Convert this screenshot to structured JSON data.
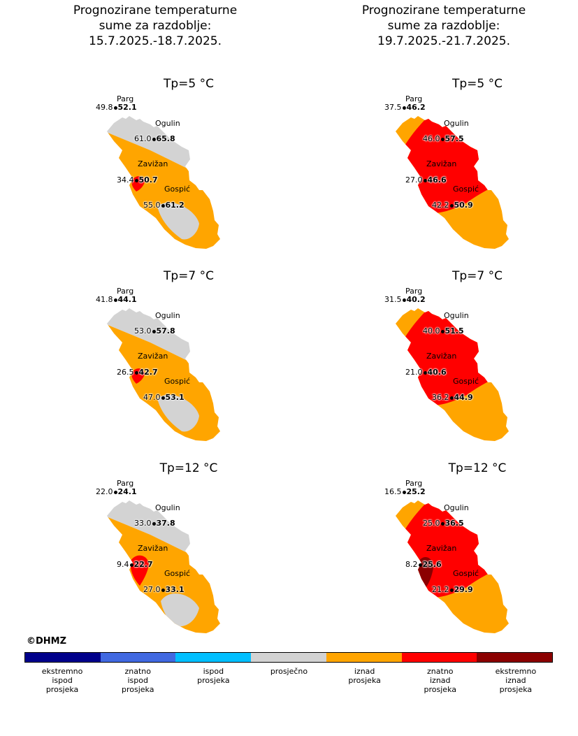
{
  "titles": {
    "left": [
      "Prognozirane temperaturne",
      "sume za razdoblje:",
      "15.7.2025.-18.7.2025."
    ],
    "right": [
      "Prognozirane temperaturne",
      "sume za razdoblje:",
      "19.7.2025.-21.7.2025."
    ]
  },
  "stations": [
    "Parg",
    "Ogulin",
    "Zavižan",
    "Gospić"
  ],
  "panels": [
    {
      "tp": "Tp=5 °C",
      "scenario": "avg",
      "values": [
        {
          "obs": "49.8",
          "fc": "52.1"
        },
        {
          "obs": "61.0",
          "fc": "65.8"
        },
        {
          "obs": "34.4",
          "fc": "50.7"
        },
        {
          "obs": "55.0",
          "fc": "61.2"
        }
      ]
    },
    {
      "tp": "Tp=5 °C",
      "scenario": "high",
      "values": [
        {
          "obs": "37.5",
          "fc": "46.2"
        },
        {
          "obs": "46.0",
          "fc": "57.5"
        },
        {
          "obs": "27.0",
          "fc": "46.6"
        },
        {
          "obs": "42.2",
          "fc": "50.9"
        }
      ]
    },
    {
      "tp": "Tp=7 °C",
      "scenario": "avg",
      "values": [
        {
          "obs": "41.8",
          "fc": "44.1"
        },
        {
          "obs": "53.0",
          "fc": "57.8"
        },
        {
          "obs": "26.5",
          "fc": "42.7"
        },
        {
          "obs": "47.0",
          "fc": "53.1"
        }
      ]
    },
    {
      "tp": "Tp=7 °C",
      "scenario": "high",
      "values": [
        {
          "obs": "31.5",
          "fc": "40.2"
        },
        {
          "obs": "40.0",
          "fc": "51.5"
        },
        {
          "obs": "21.0",
          "fc": "40.6"
        },
        {
          "obs": "36.2",
          "fc": "44.9"
        }
      ]
    },
    {
      "tp": "Tp=12 °C",
      "scenario": "avg12",
      "values": [
        {
          "obs": "22.0",
          "fc": "24.1"
        },
        {
          "obs": "33.0",
          "fc": "37.8"
        },
        {
          "obs": "9.4",
          "fc": "22.7"
        },
        {
          "obs": "27.0",
          "fc": "33.1"
        }
      ]
    },
    {
      "tp": "Tp=12 °C",
      "scenario": "high12",
      "values": [
        {
          "obs": "16.5",
          "fc": "25.2"
        },
        {
          "obs": "25.0",
          "fc": "36.5"
        },
        {
          "obs": "8.2",
          "fc": "25.6"
        },
        {
          "obs": "21.2",
          "fc": "29.9"
        }
      ]
    }
  ],
  "copyright": "©DHMZ",
  "legend": [
    {
      "label": [
        "ekstremno",
        "ispod",
        "prosjeka"
      ],
      "color": "#00008b"
    },
    {
      "label": [
        "znatno",
        "ispod",
        "prosjeka"
      ],
      "color": "#4169e1"
    },
    {
      "label": [
        "ispod",
        "prosjeka"
      ],
      "color": "#00bfff"
    },
    {
      "label": [
        "prosječno"
      ],
      "color": "#d3d3d3"
    },
    {
      "label": [
        "iznad",
        "prosjeka"
      ],
      "color": "#ffa500"
    },
    {
      "label": [
        "znatno",
        "iznad",
        "prosjeka"
      ],
      "color": "#ff0000"
    },
    {
      "label": [
        "ekstremno",
        "iznad",
        "prosjeka"
      ],
      "color": "#8b0000"
    }
  ],
  "colors": {
    "gray": "#d3d3d3",
    "orange": "#ffa500",
    "red": "#ff0000",
    "darkred": "#8b0000"
  }
}
